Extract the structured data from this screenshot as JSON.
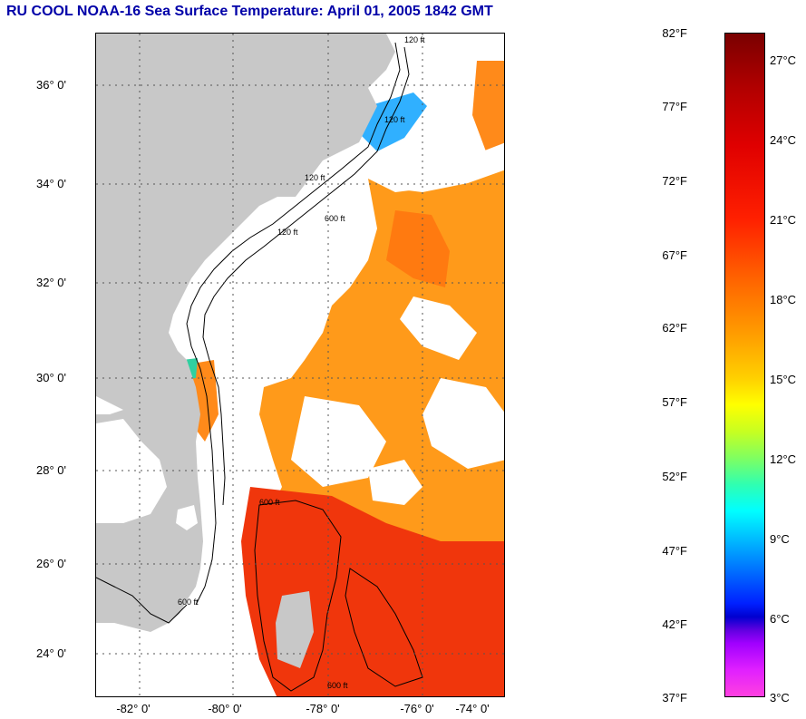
{
  "title": "RU COOL  NOAA-16  Sea Surface Temperature:  April 01, 2005 1842 GMT",
  "map": {
    "latitude_labels": [
      "36° 0'",
      "34° 0'",
      "32° 0'",
      "30° 0'",
      "28° 0'",
      "26° 0'",
      "24° 0'"
    ],
    "longitude_labels": [
      "-82° 0'",
      "-80° 0'",
      "-78° 0'",
      "-76° 0'",
      "-74° 0'"
    ],
    "contour_labels": [
      "120 ft",
      "120 ft",
      "120 ft",
      "600 ft",
      "120 ft",
      "600 ft",
      "600 ft",
      "600 ft"
    ],
    "colors": {
      "land": "#c8c8c8",
      "no_data": "#ffffff",
      "warm_sst": "#ff8c1a",
      "gulf_stream": "#e81e0c",
      "cold_coastal": "#1ea0ff"
    }
  },
  "colorbar": {
    "fahrenheit_labels": [
      "82°F",
      "77°F",
      "72°F",
      "67°F",
      "62°F",
      "57°F",
      "52°F",
      "47°F",
      "42°F",
      "37°F"
    ],
    "celsius_labels": [
      "27°C",
      "24°C",
      "21°C",
      "18°C",
      "15°C",
      "12°C",
      "9°C",
      "6°C",
      "3°C"
    ]
  }
}
